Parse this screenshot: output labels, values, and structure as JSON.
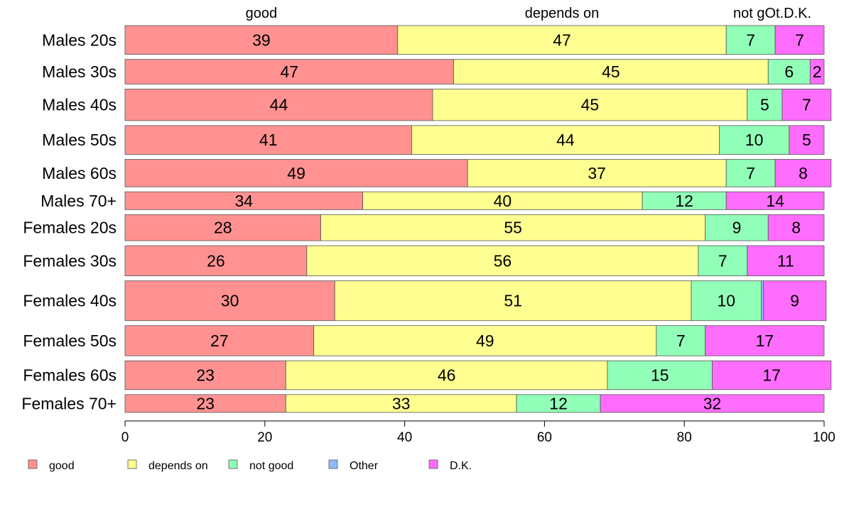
{
  "chart_data": {
    "type": "bar",
    "orientation": "horizontal",
    "stacked": true,
    "categories": [
      "Males 20s",
      "Males 30s",
      "Males 40s",
      "Males 50s",
      "Males 60s",
      "Males 70+",
      "Females 20s",
      "Females 30s",
      "Females 40s",
      "Females 50s",
      "Females 60s",
      "Females 70+"
    ],
    "series": [
      {
        "name": "good",
        "color": "#ff9191",
        "values": [
          39,
          47,
          44,
          41,
          49,
          34,
          28,
          26,
          30,
          27,
          23,
          23
        ]
      },
      {
        "name": "depends on",
        "color": "#ffff91",
        "values": [
          47,
          45,
          45,
          44,
          37,
          40,
          55,
          56,
          51,
          49,
          46,
          33
        ]
      },
      {
        "name": "not good",
        "color": "#91ffb8",
        "values": [
          7,
          6,
          5,
          10,
          7,
          12,
          9,
          7,
          10,
          7,
          15,
          12
        ]
      },
      {
        "name": "Other",
        "color": "#91b8ff",
        "values": [
          0,
          0,
          0,
          0,
          0,
          0,
          0,
          0,
          0.3,
          0,
          0,
          0
        ]
      },
      {
        "name": "D.K.",
        "color": "#ff6dff",
        "values": [
          7,
          2,
          7,
          5,
          8,
          14,
          8,
          11,
          9,
          17,
          17,
          32
        ]
      }
    ],
    "data_labels": [
      [
        "39",
        "47",
        "7",
        "",
        "7"
      ],
      [
        "47",
        "45",
        "6",
        "",
        "2"
      ],
      [
        "44",
        "45",
        "5",
        "",
        "7"
      ],
      [
        "41",
        "44",
        "10",
        "",
        "5"
      ],
      [
        "49",
        "37",
        "7",
        "",
        "8"
      ],
      [
        "34",
        "40",
        "12",
        "",
        "14"
      ],
      [
        "28",
        "55",
        "9",
        "",
        "8"
      ],
      [
        "26",
        "56",
        "7",
        "",
        "11"
      ],
      [
        "30",
        "51",
        "10",
        "",
        "9"
      ],
      [
        "27",
        "49",
        "7",
        "",
        "17"
      ],
      [
        "23",
        "46",
        "15",
        "",
        "17"
      ],
      [
        "23",
        "33",
        "12",
        "",
        "32"
      ]
    ],
    "bar_weights": [
      1.05,
      0.9,
      1.15,
      1.05,
      1.0,
      0.65,
      0.95,
      1.1,
      1.45,
      1.1,
      1.05,
      0.65
    ],
    "top_labels": [
      "good",
      "depends on",
      "not gOt.D.K."
    ],
    "xlim": [
      0,
      100
    ],
    "xticks": [
      "0",
      "20",
      "40",
      "60",
      "80",
      "100"
    ],
    "grid": false,
    "legend": {
      "position": "bottom-left",
      "items": [
        "good",
        "depends on",
        "not good",
        "Other",
        "D.K."
      ]
    }
  }
}
